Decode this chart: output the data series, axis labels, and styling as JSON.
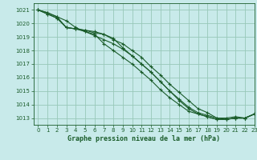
{
  "title": "Graphe pression niveau de la mer (hPa)",
  "bg_color": "#c8eaea",
  "plot_bg_color": "#c8eaea",
  "grid_color": "#98c8b8",
  "line_color": "#1a5c2a",
  "xlim": [
    -0.5,
    23
  ],
  "ylim": [
    1012.5,
    1021.5
  ],
  "yticks": [
    1013,
    1014,
    1015,
    1016,
    1017,
    1018,
    1019,
    1020,
    1021
  ],
  "xticks": [
    0,
    1,
    2,
    3,
    4,
    5,
    6,
    7,
    8,
    9,
    10,
    11,
    12,
    13,
    14,
    15,
    16,
    17,
    18,
    19,
    20,
    21,
    22,
    23
  ],
  "series": [
    [
      1021.0,
      1020.8,
      1020.5,
      1020.2,
      1019.7,
      1019.4,
      1019.1,
      1018.8,
      1018.5,
      1018.1,
      1017.6,
      1017.0,
      1016.4,
      1015.7,
      1015.0,
      1014.3,
      1013.7,
      1013.3,
      1013.1,
      1012.9,
      1012.9,
      1013.0,
      1013.0,
      1013.3
    ],
    [
      1021.0,
      1020.7,
      1020.4,
      1019.7,
      1019.6,
      1019.5,
      1019.3,
      1019.2,
      1018.9,
      1018.2,
      1017.6,
      1017.0,
      1016.4,
      1015.7,
      1015.0,
      1014.4,
      1013.8,
      1013.4,
      1013.2,
      1013.0,
      1012.9,
      1013.0,
      1013.0,
      1013.3
    ],
    [
      1021.0,
      1020.8,
      1020.5,
      1019.7,
      1019.6,
      1019.4,
      1019.2,
      1018.5,
      1018.0,
      1017.5,
      1017.0,
      1016.4,
      1015.8,
      1015.1,
      1014.5,
      1014.0,
      1013.5,
      1013.3,
      1013.1,
      1012.9,
      1012.9,
      1013.0,
      1013.0,
      1013.3
    ],
    [
      1021.0,
      1020.7,
      1020.4,
      1019.7,
      1019.6,
      1019.5,
      1019.4,
      1019.2,
      1018.8,
      1018.5,
      1018.0,
      1017.5,
      1016.8,
      1016.2,
      1015.5,
      1014.9,
      1014.3,
      1013.7,
      1013.4,
      1013.0,
      1013.0,
      1013.1,
      1013.0,
      1013.3
    ]
  ]
}
